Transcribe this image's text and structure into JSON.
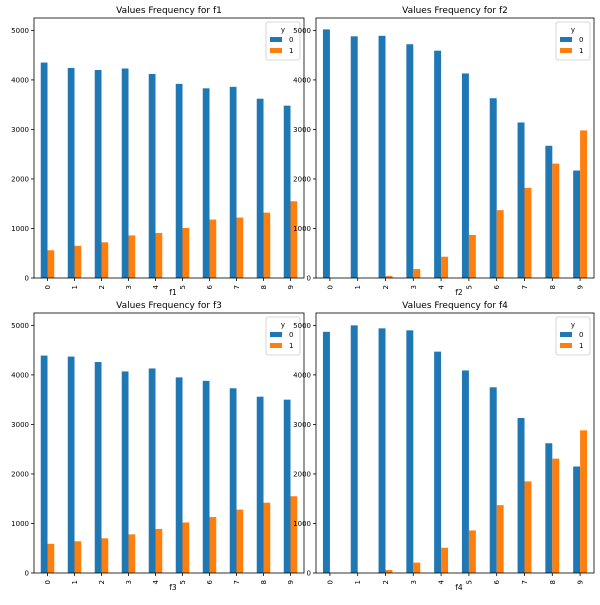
{
  "chart_data": [
    {
      "type": "bar",
      "title": "Values Frequency for f1",
      "xlabel": "f1",
      "ylabel": "",
      "categories": [
        "0",
        "1",
        "2",
        "3",
        "4",
        "5",
        "6",
        "7",
        "8",
        "9"
      ],
      "yticks": [
        0,
        1000,
        2000,
        3000,
        4000,
        5000
      ],
      "ylim": [
        0,
        5250
      ],
      "legend": {
        "title": "y",
        "position": "top-right"
      },
      "series": [
        {
          "name": "0",
          "color": "#1f77b4",
          "values": [
            4350,
            4240,
            4200,
            4230,
            4120,
            3920,
            3830,
            3860,
            3620,
            3480
          ]
        },
        {
          "name": "1",
          "color": "#ff7f0e",
          "values": [
            560,
            650,
            720,
            860,
            910,
            1010,
            1180,
            1220,
            1320,
            1550
          ]
        }
      ]
    },
    {
      "type": "bar",
      "title": "Values Frequency for f2",
      "xlabel": "f2",
      "ylabel": "",
      "categories": [
        "0",
        "1",
        "2",
        "3",
        "4",
        "5",
        "6",
        "7",
        "8",
        "9"
      ],
      "yticks": [
        0,
        1000,
        2000,
        3000,
        4000,
        5000
      ],
      "ylim": [
        0,
        5250
      ],
      "legend": {
        "title": "y",
        "position": "top-right"
      },
      "series": [
        {
          "name": "0",
          "color": "#1f77b4",
          "values": [
            5020,
            4880,
            4890,
            4720,
            4590,
            4130,
            3630,
            3140,
            2670,
            2170
          ]
        },
        {
          "name": "1",
          "color": "#ff7f0e",
          "values": [
            0,
            0,
            40,
            180,
            430,
            870,
            1370,
            1820,
            2310,
            2980
          ]
        }
      ]
    },
    {
      "type": "bar",
      "title": "Values Frequency for f3",
      "xlabel": "f3",
      "ylabel": "",
      "categories": [
        "0",
        "1",
        "2",
        "3",
        "4",
        "5",
        "6",
        "7",
        "8",
        "9"
      ],
      "yticks": [
        0,
        1000,
        2000,
        3000,
        4000,
        5000
      ],
      "ylim": [
        0,
        5250
      ],
      "legend": {
        "title": "y",
        "position": "top-right"
      },
      "series": [
        {
          "name": "0",
          "color": "#1f77b4",
          "values": [
            4390,
            4370,
            4260,
            4070,
            4130,
            3950,
            3880,
            3730,
            3560,
            3500
          ]
        },
        {
          "name": "1",
          "color": "#ff7f0e",
          "values": [
            590,
            640,
            700,
            780,
            890,
            1020,
            1130,
            1280,
            1420,
            1550
          ]
        }
      ]
    },
    {
      "type": "bar",
      "title": "Values Frequency for f4",
      "xlabel": "f4",
      "ylabel": "",
      "categories": [
        "0",
        "1",
        "2",
        "3",
        "4",
        "5",
        "6",
        "7",
        "8",
        "9"
      ],
      "yticks": [
        0,
        1000,
        2000,
        3000,
        4000,
        5000
      ],
      "ylim": [
        0,
        5250
      ],
      "legend": {
        "title": "y",
        "position": "top-right"
      },
      "series": [
        {
          "name": "0",
          "color": "#1f77b4",
          "values": [
            4870,
            5000,
            4940,
            4900,
            4470,
            4090,
            3750,
            3130,
            2620,
            2150
          ]
        },
        {
          "name": "1",
          "color": "#ff7f0e",
          "values": [
            0,
            0,
            60,
            210,
            510,
            860,
            1370,
            1850,
            2310,
            2880
          ]
        }
      ]
    }
  ]
}
